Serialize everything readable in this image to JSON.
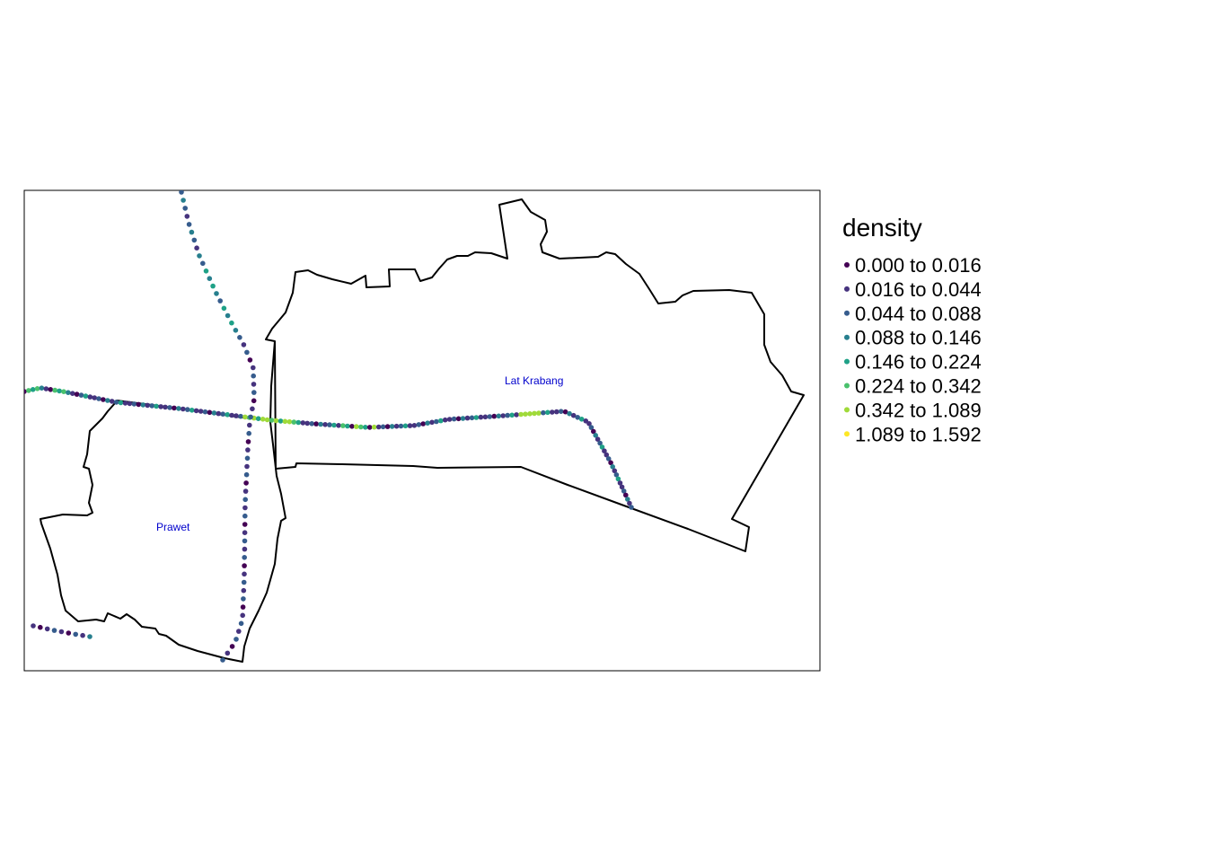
{
  "map": {
    "districts": [
      {
        "name": "Lat Krabang"
      },
      {
        "name": "Prawet"
      }
    ],
    "label_color": "#0000cc",
    "boundary_color": "#000000"
  },
  "legend": {
    "title": "density",
    "bins": [
      {
        "label": "0.000 to 0.016",
        "color": "#440154"
      },
      {
        "label": "0.016 to 0.044",
        "color": "#46337e"
      },
      {
        "label": "0.044 to 0.088",
        "color": "#365c8d"
      },
      {
        "label": "0.088 to 0.146",
        "color": "#277f8e"
      },
      {
        "label": "0.146 to 0.224",
        "color": "#1fa187"
      },
      {
        "label": "0.224 to 0.342",
        "color": "#4ac16d"
      },
      {
        "label": "0.342 to 1.089",
        "color": "#a0da39"
      },
      {
        "label": "1.089 to 1.592",
        "color": "#fde725"
      }
    ]
  }
}
